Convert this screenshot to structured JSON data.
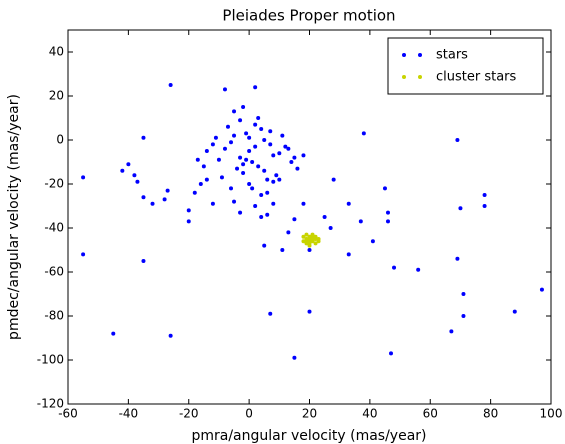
{
  "chart_data": {
    "type": "scatter",
    "title": "Pleiades Proper motion",
    "x_label": "pmra/angular velocity (mas/year)",
    "y_label": "pmdec/angular velocity (mas/year)",
    "xlim": [
      -60,
      100
    ],
    "xticks": [
      -60,
      -40,
      -20,
      0,
      20,
      40,
      60,
      80,
      100
    ],
    "ylim": [
      -120,
      50
    ],
    "yticks": [
      -120,
      -100,
      -80,
      -60,
      -40,
      -20,
      0,
      20,
      40
    ],
    "legend": "upper right",
    "series": [
      {
        "name": "stars",
        "color": "#0000ff",
        "x": [
          0,
          2,
          -3,
          5,
          -5,
          1,
          -2,
          4,
          -8,
          8,
          3,
          -1,
          6,
          -6,
          10,
          -10,
          0,
          2,
          -4,
          7,
          12,
          -12,
          -7,
          9,
          1,
          -3,
          4,
          -9,
          11,
          14,
          -14,
          5,
          -5,
          3,
          0,
          -2,
          6,
          15,
          -15,
          8,
          -11,
          2,
          -6,
          13,
          16,
          -1,
          7,
          18,
          -16,
          4,
          -55,
          -55,
          -45,
          -42,
          -40,
          -38,
          -37,
          -35,
          -35,
          -35,
          -32,
          -28,
          -27,
          -26,
          -26,
          -20,
          -20,
          -18,
          -17,
          -14,
          -12,
          -8,
          -5,
          -2,
          2,
          5,
          7,
          10,
          15,
          20,
          20,
          28,
          33,
          33,
          37,
          38,
          41,
          45,
          46,
          46,
          47,
          48,
          56,
          67,
          69,
          69,
          70,
          71,
          71,
          78,
          78,
          88,
          97,
          13,
          27,
          25,
          15,
          18,
          6,
          8,
          11,
          -3
        ],
        "values": [
          -5,
          -3,
          -8,
          0,
          2,
          -10,
          -15,
          5,
          -4,
          -7,
          -12,
          3,
          -18,
          -1,
          -6,
          -9,
          -20,
          7,
          -13,
          4,
          -3,
          -2,
          6,
          -16,
          -22,
          9,
          -25,
          -17,
          2,
          -10,
          -5,
          -14,
          -28,
          10,
          1,
          -11,
          -24,
          -8,
          -12,
          -19,
          1,
          -30,
          -22,
          -4,
          -13,
          -9,
          -2,
          -7,
          -20,
          -35,
          -17,
          -52,
          -88,
          -14,
          -11,
          -16,
          -19,
          1,
          -26,
          -55,
          -29,
          -27,
          -23,
          25,
          -89,
          -32,
          -37,
          -24,
          -9,
          -18,
          -29,
          23,
          13,
          15,
          24,
          -48,
          -79,
          -18,
          -99,
          -78,
          -50,
          -18,
          -29,
          -52,
          -37,
          3,
          -46,
          -22,
          -33,
          -37,
          -97,
          -58,
          -59,
          -87,
          0,
          -54,
          -31,
          -70,
          -80,
          -25,
          -30,
          -78,
          -68,
          -42,
          -40,
          -35,
          -36,
          -29,
          -34,
          -29,
          -50,
          -33
        ]
      },
      {
        "name": "cluster stars",
        "color": "#c8d400",
        "x": [
          19,
          20,
          21,
          22,
          18,
          20,
          21,
          19,
          22,
          23,
          20,
          21,
          18,
          19,
          20,
          22,
          21,
          20,
          19,
          23
        ],
        "values": [
          -45,
          -44,
          -46,
          -45,
          -44,
          -47,
          -43,
          -46,
          -47,
          -45,
          -45,
          -44,
          -46,
          -43,
          -48,
          -44,
          -45,
          -46,
          -47,
          -46
        ]
      }
    ]
  }
}
